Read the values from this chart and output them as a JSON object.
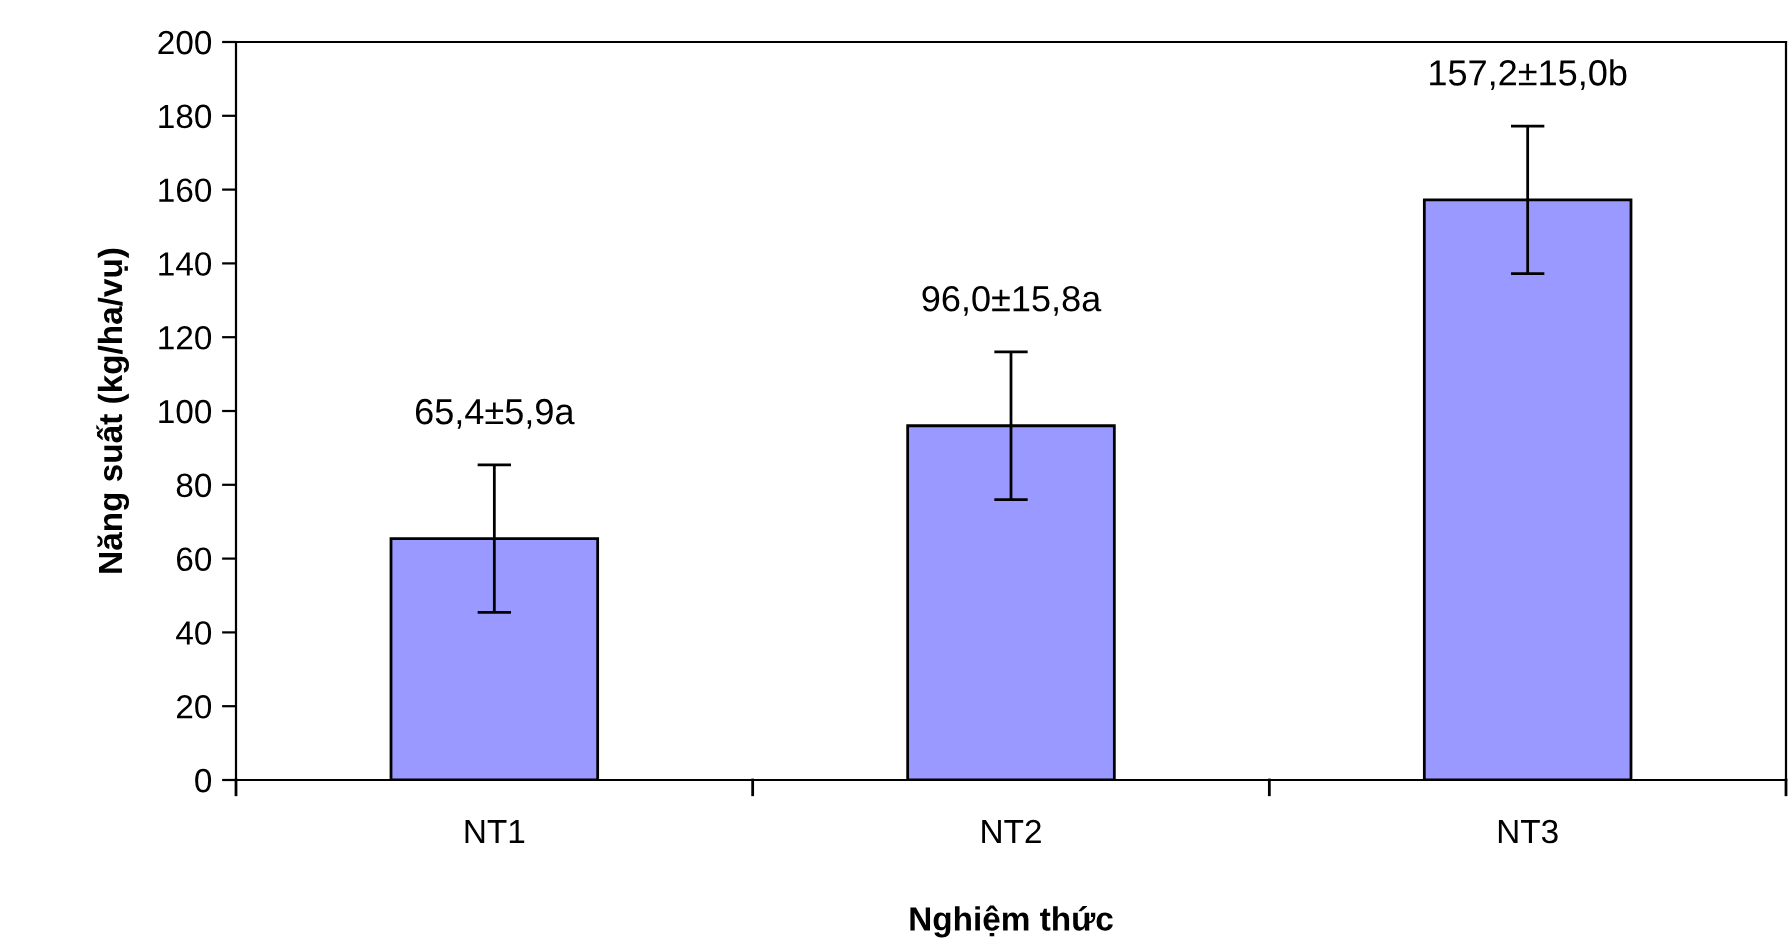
{
  "chart_data": {
    "type": "bar",
    "xlabel": "Nghiệm thức",
    "ylabel": "Năng suất (kg/ha/vụ)",
    "categories": [
      "NT1",
      "NT2",
      "NT3"
    ],
    "values": [
      65.4,
      96.0,
      157.2
    ],
    "errors": [
      20,
      20,
      20
    ],
    "value_labels": [
      "65,4±5,9a",
      "96,0±15,8a",
      "157,2±15,0b"
    ],
    "color": "#9999ff",
    "ylim": [
      0,
      200
    ],
    "yticks": [
      0,
      20,
      40,
      60,
      80,
      100,
      120,
      140,
      160,
      180,
      200
    ],
    "grid": false,
    "legend": false
  }
}
